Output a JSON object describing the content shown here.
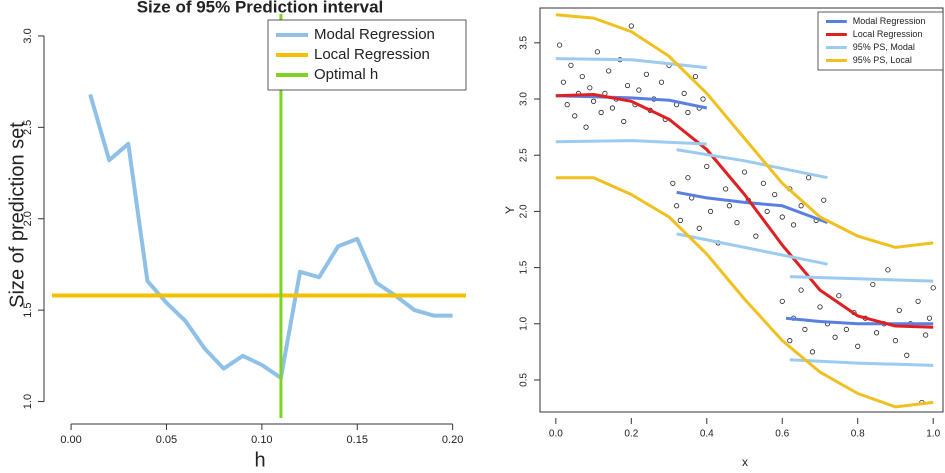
{
  "chart_data": [
    {
      "type": "line",
      "title": "Size of 95% Prediction interval",
      "x_label": "h",
      "y_label": "Size of prediction set",
      "x": [
        0.01,
        0.02,
        0.03,
        0.04,
        0.05,
        0.06,
        0.07,
        0.08,
        0.09,
        0.1,
        0.11,
        0.12,
        0.13,
        0.14,
        0.15,
        0.16,
        0.17,
        0.18,
        0.19,
        0.2
      ],
      "series": [
        {
          "name": "Modal Regression",
          "color": "#8fc1e8",
          "values": [
            2.68,
            2.32,
            2.41,
            1.66,
            1.54,
            1.44,
            1.29,
            1.18,
            1.25,
            1.2,
            1.13,
            1.71,
            1.68,
            1.85,
            1.89,
            1.65,
            1.58,
            1.5,
            1.47,
            1.47
          ]
        },
        {
          "name": "Local Regression",
          "color": "#f5c000",
          "hline": 1.58
        },
        {
          "name": "Optimal h",
          "color": "#7ed321",
          "vline": 0.11
        }
      ],
      "xlim": [
        -0.01,
        0.207
      ],
      "ylim": [
        0.91,
        3.12
      ],
      "xticks": [
        {
          "value": 0,
          "label": "0.00"
        },
        0.05,
        {
          "value": 0.1,
          "label": "0.10"
        },
        0.15,
        {
          "value": 0.2,
          "label": "0.20"
        }
      ],
      "yticks": [
        {
          "value": 1,
          "label": "1.0"
        },
        1.5,
        {
          "value": 2,
          "label": "2.0"
        },
        2.5,
        {
          "value": 3,
          "label": "3.0"
        }
      ],
      "legend": "topright"
    },
    {
      "type": "scatter",
      "x_label": "x",
      "y_label": "Y",
      "color": "#222222",
      "x": [
        0.01,
        0.02,
        0.03,
        0.04,
        0.05,
        0.06,
        0.07,
        0.08,
        0.09,
        0.1,
        0.11,
        0.12,
        0.13,
        0.14,
        0.15,
        0.16,
        0.17,
        0.18,
        0.19,
        0.2,
        0.21,
        0.22,
        0.24,
        0.25,
        0.26,
        0.28,
        0.29,
        0.3,
        0.32,
        0.34,
        0.35,
        0.37,
        0.38,
        0.39,
        0.31,
        0.32,
        0.33,
        0.35,
        0.36,
        0.38,
        0.4,
        0.41,
        0.43,
        0.45,
        0.46,
        0.48,
        0.5,
        0.51,
        0.53,
        0.55,
        0.56,
        0.58,
        0.6,
        0.62,
        0.63,
        0.65,
        0.67,
        0.69,
        0.71,
        0.6,
        0.62,
        0.63,
        0.65,
        0.66,
        0.68,
        0.7,
        0.72,
        0.74,
        0.75,
        0.77,
        0.79,
        0.8,
        0.82,
        0.84,
        0.85,
        0.87,
        0.88,
        0.9,
        0.91,
        0.93,
        0.94,
        0.96,
        0.97,
        0.98,
        0.99,
        1.0
      ],
      "values": [
        3.48,
        3.15,
        2.95,
        3.3,
        2.85,
        3.05,
        3.2,
        2.75,
        3.1,
        2.98,
        3.42,
        2.88,
        3.05,
        3.25,
        2.92,
        3.0,
        3.35,
        2.8,
        3.12,
        3.65,
        2.95,
        3.08,
        3.22,
        2.9,
        3.0,
        3.15,
        2.82,
        3.3,
        2.95,
        3.05,
        2.88,
        3.2,
        2.92,
        3.0,
        2.25,
        2.05,
        1.92,
        2.3,
        2.12,
        1.85,
        2.4,
        2.0,
        1.72,
        2.2,
        2.05,
        1.9,
        2.35,
        2.1,
        1.78,
        2.25,
        2.0,
        2.15,
        1.95,
        2.2,
        1.88,
        2.05,
        2.3,
        1.92,
        2.1,
        1.2,
        0.85,
        1.05,
        1.3,
        0.95,
        0.75,
        1.15,
        1.0,
        0.88,
        1.25,
        0.95,
        1.1,
        0.8,
        1.05,
        1.35,
        0.92,
        1.0,
        1.48,
        0.85,
        1.12,
        0.72,
        1.0,
        1.2,
        0.3,
        0.9,
        1.05,
        1.32
      ],
      "series": [
        {
          "name": "Modal Regression",
          "color": "#5b7fe0",
          "x": [
            0,
            0.1,
            0.2,
            0.3,
            0.4,
            null,
            0.32,
            0.4,
            0.5,
            0.6,
            0.72,
            null,
            0.61,
            0.7,
            0.8,
            0.9,
            1.0
          ],
          "values": [
            3.03,
            3.02,
            3.01,
            2.99,
            2.92,
            null,
            2.17,
            2.12,
            2.08,
            2.05,
            1.9,
            null,
            1.05,
            1.02,
            1.0,
            1.0,
            1.0
          ]
        },
        {
          "name": "Local Regression",
          "color": "#e02020",
          "x": [
            0,
            0.1,
            0.2,
            0.3,
            0.4,
            0.5,
            0.6,
            0.7,
            0.8,
            0.9,
            1.0
          ],
          "values": [
            3.03,
            3.04,
            2.98,
            2.82,
            2.55,
            2.15,
            1.7,
            1.3,
            1.07,
            0.98,
            0.97
          ]
        },
        {
          "name": "95% PS, Modal",
          "color": "#9ccbf0",
          "x": [
            0,
            0.2,
            0.4,
            null,
            0,
            0.2,
            0.4,
            null,
            0.32,
            0.5,
            0.72,
            null,
            0.32,
            0.5,
            0.72,
            null,
            0.62,
            0.8,
            1.0,
            null,
            0.62,
            0.8,
            1.0
          ],
          "values": [
            3.36,
            3.35,
            3.28,
            null,
            2.62,
            2.63,
            2.6,
            null,
            2.55,
            2.45,
            2.3,
            null,
            1.8,
            1.68,
            1.53,
            null,
            1.42,
            1.4,
            1.38,
            null,
            0.68,
            0.65,
            0.63
          ]
        },
        {
          "name": "95% PS, Local",
          "color": "#f0c020",
          "x": [
            0,
            0.1,
            0.2,
            0.3,
            0.4,
            0.5,
            0.6,
            0.7,
            0.8,
            0.9,
            1.0,
            null,
            0,
            0.1,
            0.2,
            0.3,
            0.4,
            0.5,
            0.6,
            0.7,
            0.8,
            0.9,
            1.0
          ],
          "values": [
            3.75,
            3.72,
            3.6,
            3.38,
            3.05,
            2.65,
            2.25,
            1.95,
            1.78,
            1.68,
            1.72,
            null,
            2.3,
            2.3,
            2.15,
            1.95,
            1.62,
            1.22,
            0.85,
            0.57,
            0.38,
            0.26,
            0.3
          ]
        }
      ],
      "xlim": [
        -0.042,
        1.026
      ],
      "ylim": [
        0.215,
        3.81
      ],
      "xticks": [
        {
          "value": 0,
          "label": "0.0"
        },
        0.2,
        0.4,
        0.6,
        0.8,
        {
          "value": 1,
          "label": "1.0"
        }
      ],
      "yticks": [
        0.5,
        {
          "value": 1,
          "label": "1.0"
        },
        1.5,
        {
          "value": 2,
          "label": "2.0"
        },
        2.5,
        {
          "value": 3,
          "label": "3.0"
        },
        3.5
      ],
      "legend": "topright"
    }
  ]
}
